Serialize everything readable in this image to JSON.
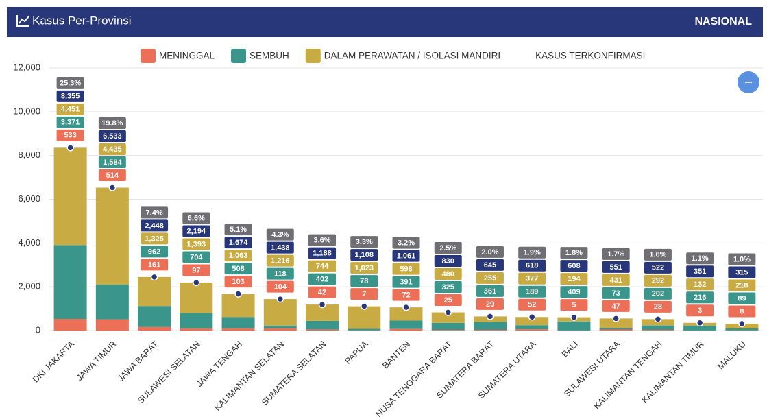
{
  "header": {
    "title": "Kasus Per-Provinsi",
    "region": "NASIONAL"
  },
  "chart_data": {
    "type": "bar",
    "stacked": true,
    "grid": true,
    "categories": [
      "DKI JAKARTA",
      "JAWA TIMUR",
      "JAWA BARAT",
      "SULAWESI SELATAN",
      "JAWA TENGAH",
      "KALIMANTAN SELATAN",
      "SUMATERA SELATAN",
      "PAPUA",
      "BANTEN",
      "NUSA TENGGARA BARAT",
      "SUMATERA BARAT",
      "SUMATERA UTARA",
      "BALI",
      "SULAWESI UTARA",
      "KALIMANTAN TENGAH",
      "KALIMANTAN TIMUR",
      "MALUKU"
    ],
    "ylim": [
      0,
      12000
    ],
    "yticks": [
      0,
      {
        "value": 2000,
        "label": "2,000"
      },
      {
        "value": 4000,
        "label": "4,000"
      },
      {
        "value": 6000,
        "label": "6,000"
      },
      {
        "value": 8000,
        "label": "8,000"
      },
      {
        "value": 10000,
        "label": "10,000"
      },
      {
        "value": 12000,
        "label": "12,000"
      }
    ],
    "series": [
      {
        "name": "MENINGGAL",
        "type": "bar",
        "color": "#ec6f57",
        "values": [
          533,
          514,
          161,
          97,
          103,
          104,
          42,
          7,
          72,
          25,
          29,
          52,
          5,
          47,
          28,
          3,
          8
        ]
      },
      {
        "name": "SEMBUH",
        "type": "bar",
        "color": "#3a968a",
        "values": [
          3371,
          1584,
          962,
          704,
          508,
          118,
          402,
          78,
          391,
          325,
          361,
          189,
          409,
          73,
          202,
          216,
          89
        ],
        "value_labels": [
          "3,371",
          "1,584",
          "962",
          "704",
          "508",
          "118",
          "402",
          "78",
          "391",
          "325",
          "361",
          "189",
          "409",
          "73",
          "202",
          "216",
          "89"
        ]
      },
      {
        "name": "DALAM PERAWATAN / ISOLASI MANDIRI",
        "type": "bar",
        "color": "#c9ab43",
        "values": [
          4451,
          4435,
          1325,
          1393,
          1063,
          1216,
          744,
          1023,
          598,
          480,
          255,
          377,
          194,
          431,
          292,
          132,
          218
        ],
        "value_labels": [
          "4,451",
          "4,435",
          "1,325",
          "1,393",
          "1,063",
          "1,216",
          "744",
          "1,023",
          "598",
          "480",
          "255",
          "377",
          "194",
          "431",
          "292",
          "132",
          "218"
        ]
      },
      {
        "name": "KASUS TERKONFIRMASI",
        "type": "point",
        "color": "#28377a",
        "values": [
          8355,
          6533,
          2448,
          2194,
          1674,
          1438,
          1188,
          1108,
          1061,
          830,
          645,
          618,
          608,
          551,
          522,
          351,
          315
        ],
        "value_labels": [
          "8,355",
          "6,533",
          "2,448",
          "2,194",
          "1,674",
          "1,438",
          "1,188",
          "1,108",
          "1,061",
          "830",
          "645",
          "618",
          "608",
          "551",
          "522",
          "351",
          "315"
        ]
      }
    ],
    "shares": {
      "color": "#6f6f73",
      "values": [
        25.3,
        19.8,
        7.4,
        6.6,
        5.1,
        4.3,
        3.6,
        3.3,
        3.2,
        2.5,
        2.0,
        1.9,
        1.8,
        1.7,
        1.6,
        1.1,
        1.0
      ],
      "value_labels": [
        "25.3%",
        "19.8%",
        "7.4%",
        "6.6%",
        "5.1%",
        "4.3%",
        "3.6%",
        "3.3%",
        "3.2%",
        "2.5%",
        "2.0%",
        "1.9%",
        "1.8%",
        "1.7%",
        "1.6%",
        "1.1%",
        "1.0%"
      ]
    }
  }
}
